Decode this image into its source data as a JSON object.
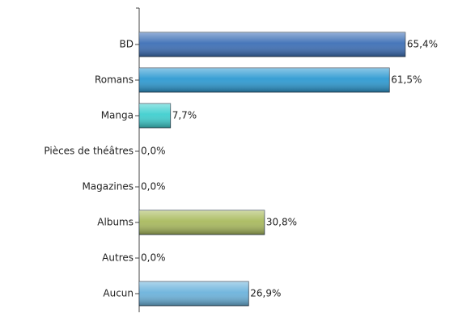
{
  "chart_data": {
    "type": "hbar",
    "categories": [
      "BD",
      "Romans",
      "Manga",
      "Pièces de théâtres",
      "Magazines",
      "Albums",
      "Autres",
      "Aucun"
    ],
    "values": [
      65.4,
      61.5,
      7.7,
      0.0,
      0.0,
      30.8,
      0.0,
      26.9
    ],
    "value_labels": [
      "65,4%",
      "61,5%",
      "7,7%",
      "0,0%",
      "0,0%",
      "30,8%",
      "0,0%",
      "26,9%"
    ],
    "colors": [
      "#3d6fb6",
      "#2e9ad2",
      "#3fcfcf",
      null,
      null,
      "#a9ba5e",
      null,
      "#6cb3dc"
    ],
    "xlim": [
      0,
      70
    ]
  }
}
